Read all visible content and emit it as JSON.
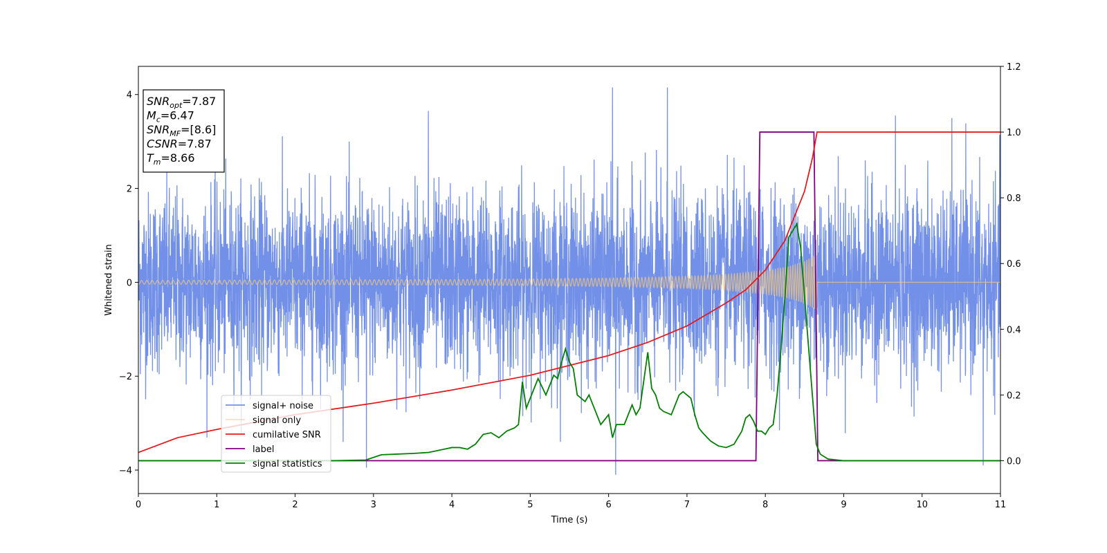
{
  "chart_data": {
    "type": "line",
    "xlabel": "Time (s)",
    "ylabel_left": "Whitened strain",
    "xlim": [
      0,
      11
    ],
    "ylim_left": [
      -4.5,
      4.6
    ],
    "ylim_right": [
      -0.1,
      1.2
    ],
    "x_ticks": [
      0,
      1,
      2,
      3,
      4,
      5,
      6,
      7,
      8,
      9,
      10,
      11
    ],
    "y_ticks_left": [
      -4,
      -2,
      0,
      2,
      4
    ],
    "y_ticks_right": [
      0.0,
      0.2,
      0.4,
      0.6,
      0.8,
      1.0,
      1.2
    ],
    "x_tick_labels": [
      "0",
      "1",
      "2",
      "3",
      "4",
      "5",
      "6",
      "7",
      "8",
      "9",
      "10",
      "11"
    ],
    "y_tick_labels_left": [
      "−4",
      "−2",
      "0",
      "2",
      "4"
    ],
    "y_tick_labels_right": [
      "0.0",
      "0.2",
      "0.4",
      "0.6",
      "0.8",
      "1.0",
      "1.2"
    ],
    "grid": false,
    "legend_position": "lower-left",
    "info_box": {
      "lines": [
        {
          "base": "SNR",
          "sub": "opt",
          "value": "=7.87"
        },
        {
          "base": "M",
          "sub": "c",
          "value": "=6.47"
        },
        {
          "base": "SNR",
          "sub": "MF",
          "value": "=[8.6]"
        },
        {
          "base": "CSNR",
          "sub": "",
          "value": "=7.87"
        },
        {
          "base": "T",
          "sub": "m",
          "value": "=8.66"
        }
      ]
    },
    "series": [
      {
        "name": "signal+ noise",
        "axis": "left",
        "color": "#6a8ae6",
        "noise_std": 0.95,
        "x_range": [
          0,
          11
        ],
        "spikes": [
          {
            "x": 6.05,
            "y": 4.15
          },
          {
            "x": 6.75,
            "y": 4.15
          },
          {
            "x": 3.7,
            "y": 3.65
          },
          {
            "x": 6.09,
            "y": -4.1
          },
          {
            "x": 2.91,
            "y": -3.95
          },
          {
            "x": 10.78,
            "y": -3.9
          },
          {
            "x": 9.66,
            "y": 3.55
          },
          {
            "x": 10.38,
            "y": 3.5
          }
        ]
      },
      {
        "name": "signal only",
        "axis": "left",
        "color": "#f5c87a",
        "envelope": {
          "x": [
            0,
            2,
            4,
            5,
            6,
            7,
            7.5,
            8,
            8.3,
            8.5,
            8.66
          ],
          "y": [
            0.04,
            0.05,
            0.06,
            0.07,
            0.09,
            0.13,
            0.17,
            0.25,
            0.34,
            0.45,
            0.6
          ]
        },
        "zero_after": 8.66
      },
      {
        "name": "cumilative SNR",
        "axis": "right",
        "color": "#e41a1c",
        "x": [
          0,
          0.5,
          1,
          2,
          3,
          4,
          5,
          6,
          6.5,
          7,
          7.5,
          7.75,
          8,
          8.25,
          8.5,
          8.6,
          8.66,
          11
        ],
        "y": [
          0.025,
          0.07,
          0.095,
          0.14,
          0.175,
          0.215,
          0.26,
          0.32,
          0.36,
          0.41,
          0.48,
          0.52,
          0.58,
          0.67,
          0.82,
          0.92,
          1.0,
          1.0
        ]
      },
      {
        "name": "label",
        "axis": "right",
        "color": "#800080",
        "x": [
          0,
          7.88,
          7.93,
          8.62,
          8.67,
          11
        ],
        "y": [
          0,
          0,
          1,
          1,
          0,
          0
        ]
      },
      {
        "name": "signal statistics",
        "axis": "right",
        "color": "#008000",
        "x": [
          0,
          0.5,
          1,
          2,
          2.5,
          2.9,
          3.0,
          3.1,
          3.3,
          3.5,
          3.7,
          3.8,
          3.9,
          4.0,
          4.1,
          4.2,
          4.3,
          4.4,
          4.5,
          4.6,
          4.7,
          4.8,
          4.85,
          4.9,
          4.95,
          5.0,
          5.05,
          5.1,
          5.2,
          5.3,
          5.35,
          5.4,
          5.45,
          5.5,
          5.55,
          5.6,
          5.65,
          5.7,
          5.75,
          5.8,
          5.9,
          6.0,
          6.05,
          6.1,
          6.2,
          6.3,
          6.35,
          6.4,
          6.5,
          6.55,
          6.6,
          6.65,
          6.7,
          6.8,
          6.9,
          6.95,
          7.0,
          7.05,
          7.1,
          7.15,
          7.2,
          7.3,
          7.4,
          7.5,
          7.6,
          7.7,
          7.75,
          7.8,
          7.85,
          7.9,
          7.95,
          8.0,
          8.05,
          8.1,
          8.15,
          8.2,
          8.25,
          8.3,
          8.35,
          8.4,
          8.45,
          8.5,
          8.55,
          8.6,
          8.65,
          8.7,
          8.8,
          9,
          9.5,
          10,
          11
        ],
        "y": [
          0.0,
          0.0,
          0.0,
          0.0,
          0.0,
          0.002,
          0.01,
          0.018,
          0.02,
          0.022,
          0.025,
          0.03,
          0.035,
          0.04,
          0.04,
          0.035,
          0.05,
          0.08,
          0.085,
          0.07,
          0.09,
          0.1,
          0.11,
          0.24,
          0.16,
          0.19,
          0.22,
          0.25,
          0.2,
          0.26,
          0.25,
          0.3,
          0.34,
          0.3,
          0.28,
          0.2,
          0.19,
          0.18,
          0.2,
          0.17,
          0.11,
          0.14,
          0.07,
          0.11,
          0.11,
          0.17,
          0.14,
          0.16,
          0.33,
          0.22,
          0.2,
          0.16,
          0.15,
          0.14,
          0.2,
          0.21,
          0.2,
          0.19,
          0.14,
          0.1,
          0.085,
          0.06,
          0.045,
          0.04,
          0.05,
          0.09,
          0.13,
          0.14,
          0.12,
          0.09,
          0.09,
          0.08,
          0.1,
          0.11,
          0.2,
          0.34,
          0.5,
          0.68,
          0.7,
          0.72,
          0.65,
          0.5,
          0.35,
          0.2,
          0.05,
          0.02,
          0.005,
          0.0,
          0.0,
          0.0,
          0.0
        ]
      }
    ]
  }
}
